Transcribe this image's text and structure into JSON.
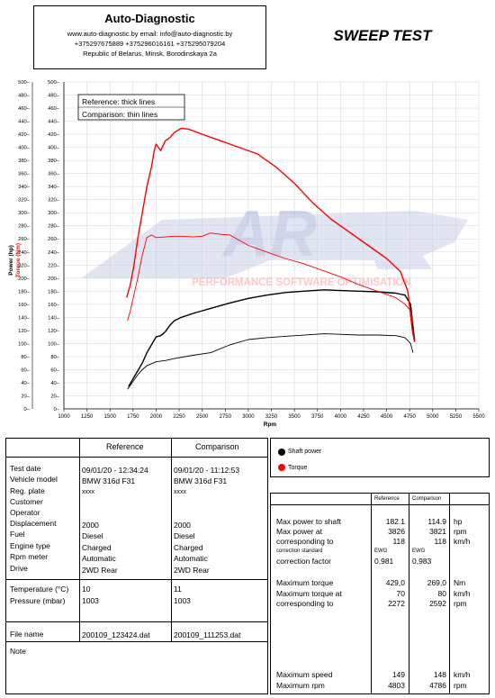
{
  "header": {
    "company": "Auto-Diagnostic",
    "contacts": "www.auto-diagnostic.by    email: info@auto-diagnostic.by",
    "phones": "+375297675889  +375296016161  +375295079204",
    "address": "Republic of Belarus, Minsk, Borodinskaya 2a",
    "title": "SWEEP TEST"
  },
  "watermark": {
    "logo": "AR",
    "text": "PERFORMANCE SOFTWARE OPTIMISATION"
  },
  "chart_legend": {
    "reference": "Reference: thick lines",
    "comparison": "Comparison: thin lines"
  },
  "chart_data": {
    "type": "line",
    "xlabel": "Rpm",
    "ylabel_power": "Power (hp)",
    "ylabel_torque": "Torque (Nm)",
    "xlim": [
      1000,
      5500
    ],
    "ylim": [
      0,
      500
    ],
    "x_ticks": [
      "1000",
      "1250",
      "1500",
      "1750",
      "2000",
      "2250",
      "2500",
      "2750",
      "3000",
      "3250",
      "3500",
      "3750",
      "4000",
      "4250",
      "4500",
      "4750",
      "5000",
      "5250",
      "5500"
    ],
    "y_ticks": [
      "0",
      "20",
      "40",
      "60",
      "80",
      "100",
      "120",
      "140",
      "160",
      "180",
      "200",
      "220",
      "240",
      "260",
      "280",
      "300",
      "320",
      "340",
      "360",
      "380",
      "400",
      "420",
      "440",
      "460",
      "480",
      "500"
    ],
    "grid": true,
    "series": [
      {
        "name": "Shaft power",
        "color": "#000000",
        "width": "thick",
        "x": [
          1700,
          1750,
          1800,
          1850,
          1900,
          1950,
          2000,
          2050,
          2100,
          2150,
          2200,
          2272,
          2400,
          2600,
          2800,
          3000,
          3200,
          3400,
          3600,
          3826,
          4000,
          4200,
          4400,
          4600,
          4700,
          4760,
          4803
        ],
        "y": [
          34,
          46,
          58,
          70,
          86,
          98,
          110,
          112,
          118,
          128,
          135,
          140,
          146,
          154,
          162,
          169,
          174,
          178,
          180,
          182.1,
          181,
          180,
          179,
          177,
          174,
          160,
          104
        ]
      },
      {
        "name": "Torque",
        "color": "#ff0000",
        "width": "thick",
        "x": [
          1680,
          1720,
          1760,
          1800,
          1850,
          1900,
          1950,
          1980,
          2000,
          2050,
          2100,
          2150,
          2200,
          2272,
          2350,
          2500,
          2700,
          2900,
          3100,
          3300,
          3500,
          3700,
          3900,
          4100,
          4300,
          4500,
          4650,
          4730,
          4780,
          4803
        ],
        "y": [
          170,
          190,
          220,
          260,
          300,
          340,
          370,
          395,
          405,
          395,
          410,
          415,
          423,
          429,
          428,
          420,
          410,
          400,
          390,
          370,
          345,
          315,
          290,
          270,
          250,
          230,
          210,
          180,
          120,
          102
        ]
      },
      {
        "name": "Shaft power (comparison)",
        "color": "#000000",
        "width": "thin",
        "x": [
          1690,
          1750,
          1800,
          1850,
          1900,
          2000,
          2100,
          2200,
          2400,
          2592,
          2800,
          3000,
          3200,
          3400,
          3821,
          4000,
          4200,
          4400,
          4600,
          4700,
          4760,
          4786
        ],
        "y": [
          30,
          42,
          52,
          60,
          66,
          72,
          74,
          77,
          82,
          86,
          98,
          106,
          109,
          111,
          114.9,
          114,
          113,
          113,
          112,
          109,
          100,
          86
        ]
      },
      {
        "name": "Torque (comparison)",
        "color": "#ff0000",
        "width": "thin",
        "x": [
          1690,
          1720,
          1760,
          1800,
          1850,
          1900,
          1950,
          2000,
          2100,
          2200,
          2300,
          2400,
          2500,
          2592,
          2700,
          2800,
          3000,
          3200,
          3400,
          3600,
          3800,
          4000,
          4200,
          4400,
          4600,
          4700,
          4760,
          4786
        ],
        "y": [
          135,
          150,
          175,
          200,
          235,
          262,
          266,
          262,
          263,
          264,
          264,
          263,
          264,
          269,
          267,
          266,
          250,
          240,
          230,
          222,
          212,
          202,
          190,
          180,
          170,
          160,
          150,
          130
        ]
      }
    ]
  },
  "bottom_legend": {
    "shaft_power": "Shaft power",
    "torque": "Torque"
  },
  "info_table": {
    "col_reference": "Reference",
    "col_comparison": "Comparison",
    "rows": [
      {
        "label": "Test date",
        "ref": "09/01/20 - 12:34:24",
        "cmp": "09/01/20 - 11:12:53"
      },
      {
        "label": "Vehicle model",
        "ref": "BMW 316d F31",
        "cmp": "BMW 316d F31"
      },
      {
        "label": "Reg. plate",
        "ref": "xxxx",
        "cmp": "xxxx"
      },
      {
        "label": "Customer",
        "ref": "",
        "cmp": ""
      },
      {
        "label": "Operator",
        "ref": "",
        "cmp": ""
      },
      {
        "label": "Displacement",
        "ref": "2000",
        "cmp": "2000"
      },
      {
        "label": "Fuel",
        "ref": "Diesel",
        "cmp": "Diesel"
      },
      {
        "label": "Engine type",
        "ref": "Charged",
        "cmp": "Charged"
      },
      {
        "label": "Rpm meter",
        "ref": "Automatic",
        "cmp": "Automatic"
      },
      {
        "label": "Drive",
        "ref": "2WD Rear",
        "cmp": "2WD Rear"
      }
    ],
    "temp_label": "Temperature (°C)",
    "temp_ref": "10",
    "temp_cmp": "11",
    "pressure_label": "Pressure (mbar)",
    "pressure_ref": "1003",
    "pressure_cmp": "1003",
    "file_label": "File name",
    "file_ref": "200109_123424.dat",
    "file_cmp": "200109_111253.dat",
    "note_label": "Note"
  },
  "results_table": {
    "col_reference": "Reference",
    "col_comparison": "Comparison",
    "max_power_label": "Max power to shaft",
    "max_power_ref": "182.1",
    "max_power_cmp": "114.9",
    "max_power_unit": "hp",
    "power_at_label": "Max power at",
    "power_at_ref": "3826",
    "power_at_cmp": "3821",
    "power_at_unit": "rpm",
    "power_corr_label": "corresponding to",
    "power_corr_ref": "118",
    "power_corr_cmp": "118",
    "power_corr_unit": "km/h",
    "corr_std_label": "correction standard",
    "corr_std_ref": "EWG",
    "corr_std_cmp": "EWG",
    "corr_factor_label": "correction factor",
    "corr_factor_ref": "0,981",
    "corr_factor_cmp": "0,983",
    "max_torque_label": "Maximum torque",
    "max_torque_ref": "429,0",
    "max_torque_cmp": "269,0",
    "max_torque_unit": "Nm",
    "torque_at_label": "Maximum torque at",
    "torque_at_ref": "70",
    "torque_at_cmp": "80",
    "torque_at_unit": "km/h",
    "torque_corr_label": "corresponding to",
    "torque_corr_ref": "2272",
    "torque_corr_cmp": "2592",
    "torque_corr_unit": "rpm",
    "max_speed_label": "Maximum speed",
    "max_speed_ref": "149",
    "max_speed_cmp": "148",
    "max_speed_unit": "km/h",
    "max_rpm_label": "Maximum rpm",
    "max_rpm_ref": "4803",
    "max_rpm_cmp": "4786",
    "max_rpm_unit": "rpm"
  }
}
